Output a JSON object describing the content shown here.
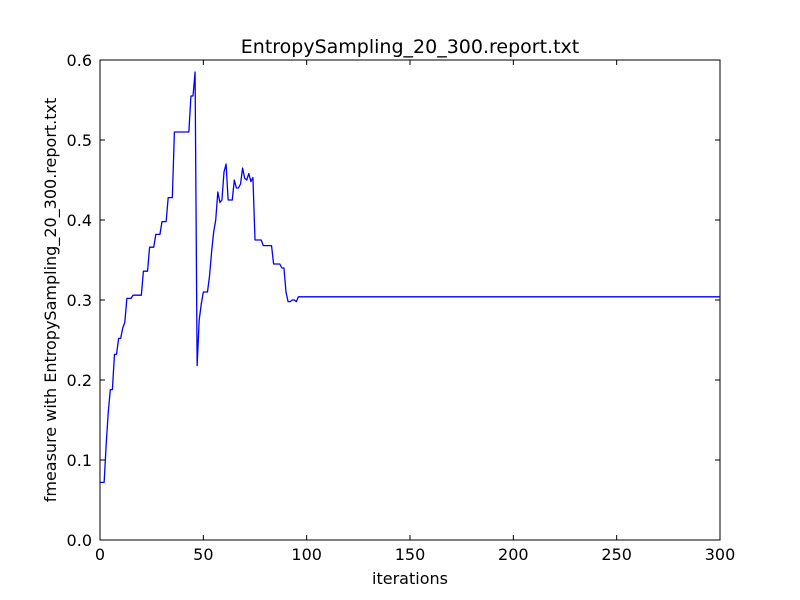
{
  "chart_data": {
    "type": "line",
    "title": "EntropySampling_20_300.report.txt",
    "xlabel": "iterations",
    "ylabel": "fmeasure with EntropySampling_20_300.report.txt",
    "xlim": [
      0,
      300
    ],
    "ylim": [
      0.0,
      0.6
    ],
    "xticks": [
      0,
      50,
      100,
      150,
      200,
      250,
      300
    ],
    "xtick_labels": [
      "0",
      "50",
      "100",
      "150",
      "200",
      "250",
      "300"
    ],
    "yticks": [
      0.0,
      0.1,
      0.2,
      0.3,
      0.4,
      0.5,
      0.6
    ],
    "ytick_labels": [
      "0.0",
      "0.1",
      "0.2",
      "0.3",
      "0.4",
      "0.5",
      "0.6"
    ],
    "grid": false,
    "legend": "none",
    "line_color": "#0000ff",
    "series": [
      {
        "x": [
          0,
          2,
          3,
          4,
          5,
          6,
          7,
          8,
          9,
          10,
          11,
          12,
          13,
          14,
          15,
          16,
          17,
          18,
          19,
          20,
          21,
          22,
          23,
          24,
          25,
          26,
          27,
          28,
          29,
          30,
          31,
          32,
          33,
          34,
          35,
          36,
          37,
          38,
          39,
          40,
          41,
          42,
          43,
          44,
          45,
          46,
          47,
          48,
          49,
          50,
          51,
          52,
          53,
          54,
          55,
          56,
          57,
          58,
          59,
          60,
          61,
          62,
          63,
          64,
          65,
          66,
          67,
          68,
          69,
          70,
          71,
          72,
          73,
          74,
          75,
          76,
          77,
          78,
          79,
          80,
          81,
          82,
          83,
          84,
          85,
          86,
          87,
          88,
          89,
          90,
          91,
          92,
          93,
          94,
          95,
          96,
          100,
          120,
          150,
          200,
          250,
          300
        ],
        "y": [
          0.072,
          0.072,
          0.12,
          0.16,
          0.188,
          0.188,
          0.232,
          0.232,
          0.252,
          0.252,
          0.265,
          0.272,
          0.302,
          0.302,
          0.302,
          0.306,
          0.306,
          0.306,
          0.306,
          0.306,
          0.336,
          0.336,
          0.336,
          0.366,
          0.366,
          0.366,
          0.382,
          0.382,
          0.382,
          0.398,
          0.398,
          0.398,
          0.428,
          0.428,
          0.428,
          0.51,
          0.51,
          0.51,
          0.51,
          0.51,
          0.51,
          0.51,
          0.51,
          0.555,
          0.555,
          0.585,
          0.218,
          0.275,
          0.295,
          0.31,
          0.31,
          0.31,
          0.33,
          0.36,
          0.385,
          0.4,
          0.435,
          0.422,
          0.425,
          0.46,
          0.47,
          0.425,
          0.425,
          0.425,
          0.45,
          0.44,
          0.44,
          0.445,
          0.465,
          0.452,
          0.45,
          0.458,
          0.448,
          0.453,
          0.375,
          0.375,
          0.375,
          0.375,
          0.368,
          0.368,
          0.368,
          0.368,
          0.368,
          0.345,
          0.345,
          0.345,
          0.345,
          0.34,
          0.34,
          0.31,
          0.298,
          0.298,
          0.3,
          0.3,
          0.298,
          0.304,
          0.304,
          0.304,
          0.304,
          0.304,
          0.304,
          0.304
        ]
      }
    ]
  }
}
